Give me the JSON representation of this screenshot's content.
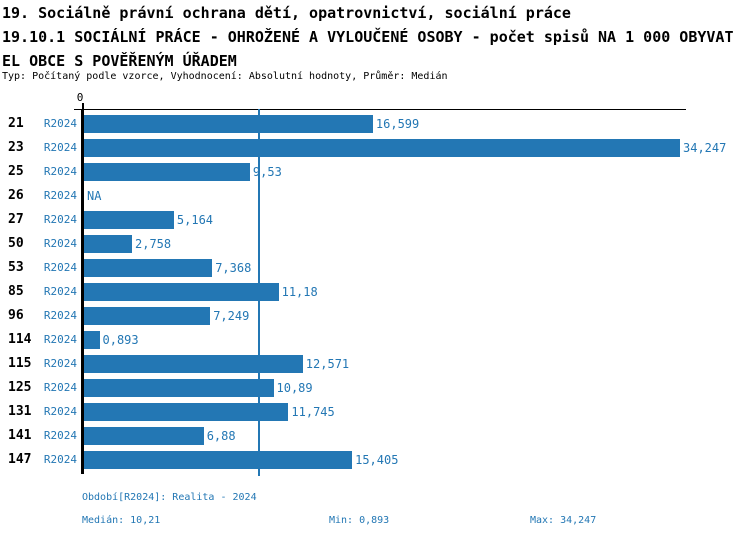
{
  "header": {
    "line1": "19. Sociálně právní ochrana dětí, opatrovnictví, sociální práce",
    "line2": "19.10.1 SOCIÁLNÍ PRÁCE - OHROŽENÉ A VYLOUČENÉ OSOBY - počet spisů NA 1 000 OBYVAT",
    "line3": "EL OBCE S POVĚŘENÝM ÚŘADEM",
    "line4": "Typ: Počítaný podle vzorce, Vyhodnocení: Absolutní hodnoty, Průměr: Medián"
  },
  "chart_data": {
    "type": "bar",
    "orientation": "horizontal",
    "categories": [
      "21",
      "23",
      "25",
      "26",
      "27",
      "50",
      "53",
      "85",
      "96",
      "114",
      "115",
      "125",
      "131",
      "141",
      "147"
    ],
    "series_label": "R2024",
    "values": [
      16.599,
      34.247,
      9.53,
      null,
      5.164,
      2.758,
      7.368,
      11.18,
      7.249,
      0.893,
      12.571,
      10.89,
      11.745,
      6.88,
      15.405
    ],
    "value_labels": [
      "16,599",
      "34,247",
      "9,53",
      "NA",
      "5,164",
      "2,758",
      "7,368",
      "11,18",
      "7,249",
      "0,893",
      "12,571",
      "10,89",
      "11,745",
      "6,88",
      "15,405"
    ],
    "axis_zero_label": "0",
    "xlim": [
      0,
      34.247
    ],
    "median_reference_line": 10.21,
    "grid": false,
    "legend_position": "none",
    "bar_color": "#2377b4",
    "label_color": "#2377b4",
    "median_line_color": "#2377b4",
    "axis_color": "#000000"
  },
  "footer": {
    "period": "Období[R2024]: Realita - 2024",
    "median": "Medián: 10,21",
    "min": "Min: 0,893",
    "max": "Max: 34,247"
  }
}
